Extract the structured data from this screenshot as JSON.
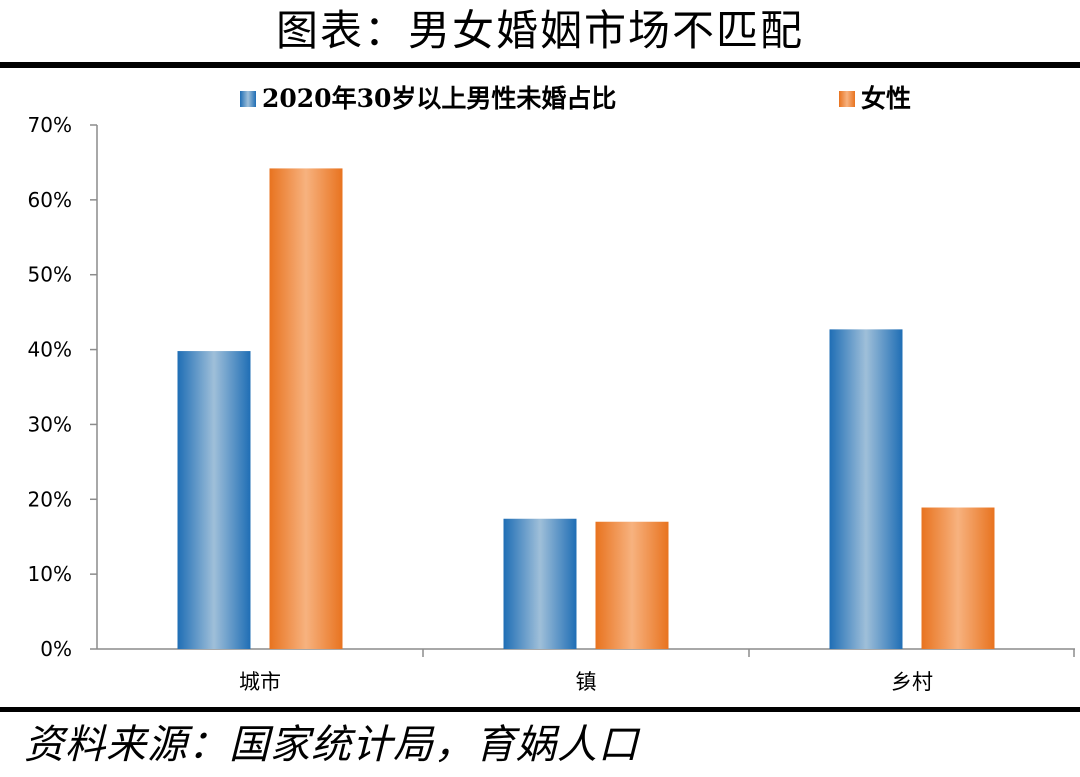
{
  "title": "图表：男女婚姻市场不匹配",
  "source": "资料来源：国家统计局，育娲人口",
  "colors": {
    "male": "#2e75b6",
    "female": "#ed7d31",
    "axis": "#8c8c8c"
  },
  "chart_data": {
    "type": "bar",
    "categories": [
      "城市",
      "镇",
      "乡村"
    ],
    "series": [
      {
        "name": "2020年30岁以上男性未婚占比",
        "values": [
          39.8,
          17.4,
          42.7
        ]
      },
      {
        "name": "女性",
        "values": [
          64.2,
          17.0,
          18.9
        ]
      }
    ],
    "ylim": [
      0,
      70
    ],
    "yticks": [
      "0%",
      "10%",
      "20%",
      "30%",
      "40%",
      "50%",
      "60%",
      "70%"
    ],
    "legend_position": "top",
    "grid": false
  }
}
